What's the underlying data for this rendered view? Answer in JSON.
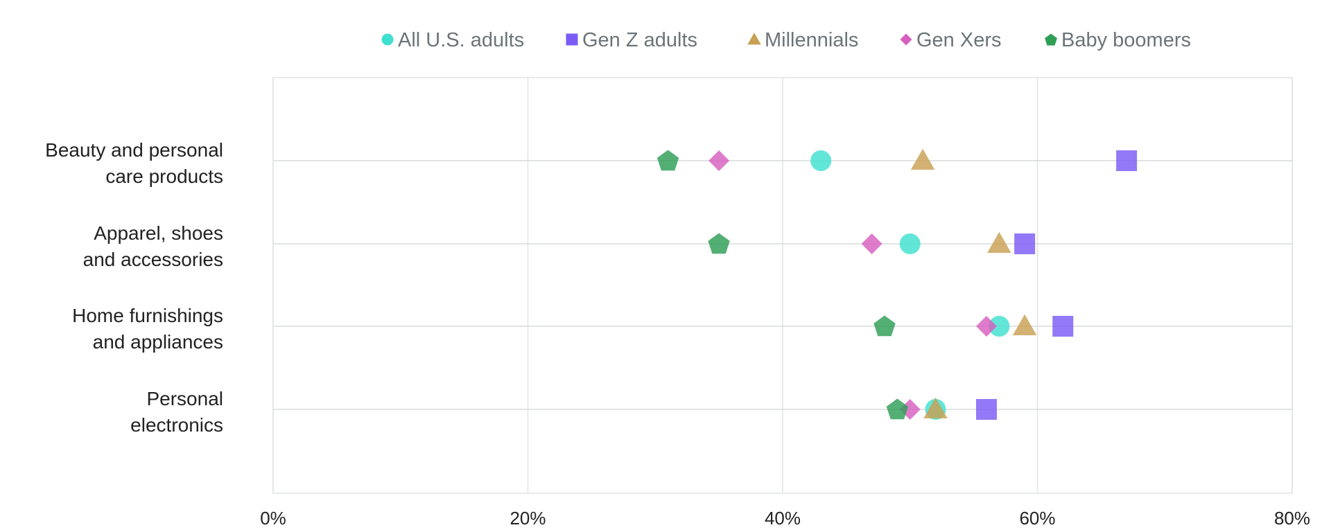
{
  "chart_data": {
    "type": "scatter",
    "title": "",
    "xlabel": "",
    "ylabel": "",
    "x_unit": "%",
    "xlim": [
      0,
      80
    ],
    "x_ticks": [
      0,
      20,
      40,
      60,
      80
    ],
    "x_tick_labels": [
      "0%",
      "20%",
      "40%",
      "60%",
      "80%"
    ],
    "grid": true,
    "legend_position": "top",
    "categories": [
      {
        "lines": [
          "Beauty and personal",
          "care products"
        ]
      },
      {
        "lines": [
          "Apparel, shoes",
          "and accessories"
        ]
      },
      {
        "lines": [
          "Home furnishings",
          "and appliances"
        ]
      },
      {
        "lines": [
          "Personal",
          "electronics"
        ]
      }
    ],
    "series": [
      {
        "name": "All U.S. adults",
        "marker": "circle",
        "color": "#40e0d0",
        "values": [
          43,
          50,
          57,
          52
        ]
      },
      {
        "name": "Gen Z adults",
        "marker": "square",
        "color": "#7b5cf5",
        "values": [
          67,
          59,
          62,
          56
        ]
      },
      {
        "name": "Millennials",
        "marker": "triangle",
        "color": "#c9a054",
        "values": [
          51,
          57,
          59,
          52
        ]
      },
      {
        "name": "Gen Xers",
        "marker": "diamond",
        "color": "#d75fbf",
        "values": [
          35,
          47,
          56,
          50
        ]
      },
      {
        "name": "Baby boomers",
        "marker": "pentagon",
        "color": "#2e9e57",
        "values": [
          31,
          35,
          48,
          49
        ]
      }
    ]
  }
}
